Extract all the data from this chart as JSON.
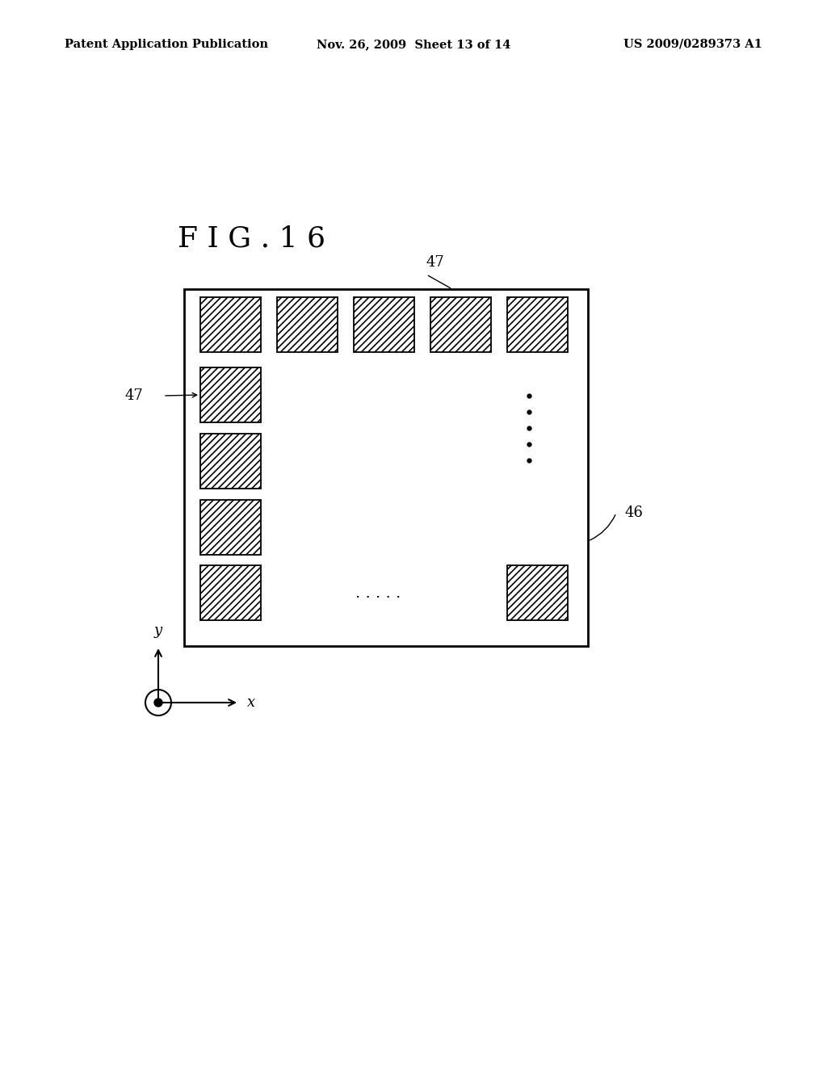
{
  "background_color": "#ffffff",
  "header_left": "Patent Application Publication",
  "header_center": "Nov. 26, 2009  Sheet 13 of 14",
  "header_right": "US 2009/0289373 A1",
  "header_fontsize": 10.5,
  "fig_label": "F I G . 1 6",
  "fig_label_fontsize": 26,
  "label_fontsize": 13,
  "hatch_pattern": "////",
  "hatch_linewidth": 1.2,
  "box_color": "#000000",
  "axis_label_fontsize": 13
}
